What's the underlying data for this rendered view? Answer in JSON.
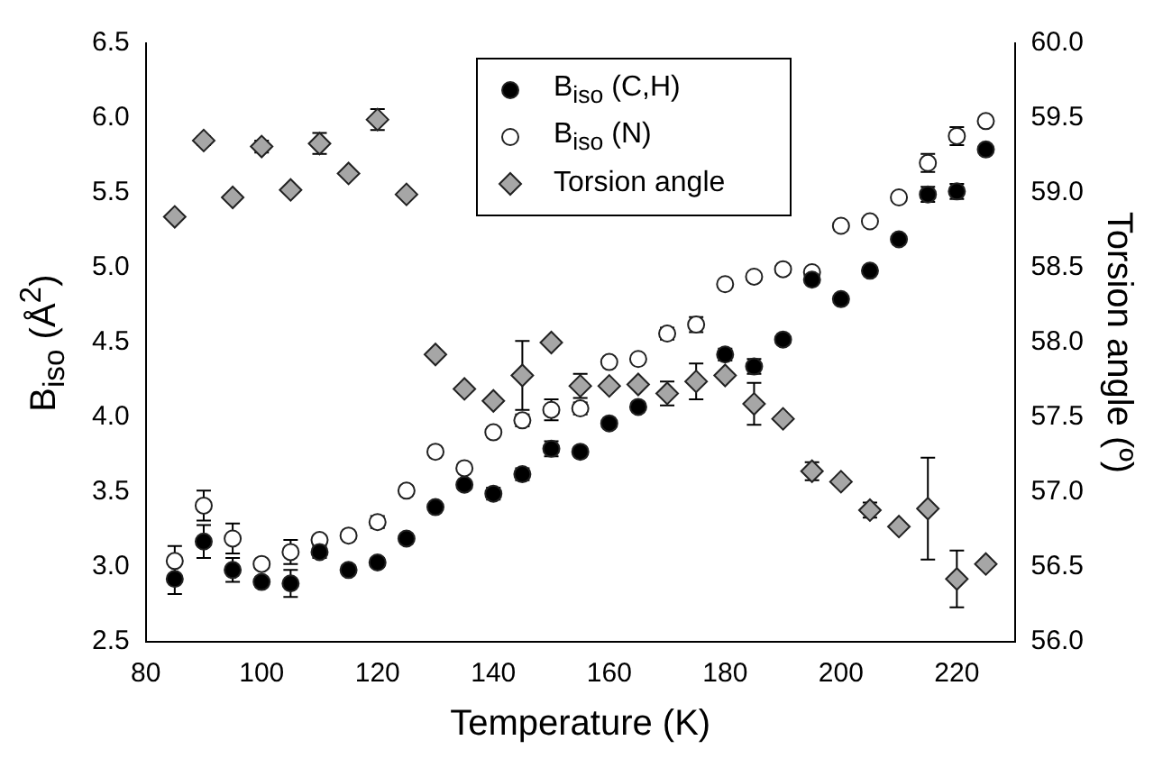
{
  "chart_data": {
    "type": "scatter",
    "xlabel": "Temperature (K)",
    "ylabel": "B$_{iso}$ (Å$^{2}$)",
    "y2label": "Torsion angle (º)",
    "x": [
      85,
      90,
      95,
      100,
      105,
      110,
      115,
      120,
      125,
      130,
      135,
      140,
      145,
      150,
      155,
      160,
      165,
      170,
      175,
      180,
      185,
      190,
      195,
      200,
      205,
      210,
      215,
      220,
      225
    ],
    "xlim": [
      80,
      230
    ],
    "xticks": [
      80,
      100,
      120,
      140,
      160,
      180,
      200,
      220
    ],
    "ylim": [
      2.5,
      6.5
    ],
    "yticks": [
      2.5,
      {
        "value": 3,
        "label": "3.0"
      },
      3.5,
      {
        "value": 4,
        "label": "4.0"
      },
      4.5,
      {
        "value": 5,
        "label": "5.0"
      },
      5.5,
      {
        "value": 6,
        "label": "6.0"
      },
      6.5
    ],
    "y2lim": [
      56,
      60
    ],
    "y2ticks": [
      {
        "value": 56,
        "label": "56.0"
      },
      56.5,
      {
        "value": 57,
        "label": "57.0"
      },
      57.5,
      {
        "value": 58,
        "label": "58.0"
      },
      58.5,
      {
        "value": 59,
        "label": "59.0"
      },
      59.5,
      {
        "value": 60,
        "label": "60.0"
      }
    ],
    "grid": false,
    "legend": "top",
    "series": [
      {
        "name": "B$_{iso}$ (C,H)",
        "color": "#000000",
        "marker": "circle",
        "values": [
          2.92,
          3.17,
          2.98,
          2.9,
          2.89,
          3.1,
          2.98,
          3.03,
          3.19,
          3.4,
          3.55,
          3.49,
          3.62,
          3.79,
          3.77,
          3.96,
          4.07,
          null,
          null,
          4.42,
          4.34,
          4.52,
          4.92,
          4.79,
          4.98,
          5.19,
          5.49,
          5.51,
          5.79
        ],
        "errors": [
          0.1,
          0.11,
          0.08,
          0.03,
          0.09,
          0.04,
          0.03,
          0.03,
          0.03,
          0.02,
          0.03,
          0.04,
          0.04,
          0.05,
          0.03,
          null,
          0.03,
          null,
          null,
          0.04,
          0.05,
          0.02,
          null,
          0.02,
          0.02,
          0.03,
          0.05,
          0.05,
          0.02
        ]
      },
      {
        "name": "B$_{iso}$ (N)",
        "color": "#ffffff",
        "marker": "circle",
        "values": [
          3.04,
          3.41,
          3.19,
          3.02,
          3.1,
          3.18,
          3.21,
          3.3,
          3.51,
          3.77,
          3.66,
          3.9,
          3.98,
          4.05,
          4.06,
          4.37,
          4.39,
          4.56,
          4.62,
          4.89,
          4.94,
          4.99,
          4.97,
          5.28,
          5.31,
          5.47,
          5.7,
          5.88,
          5.98
        ],
        "errors": [
          0.1,
          0.1,
          0.1,
          0.03,
          0.08,
          0.03,
          0.02,
          0.04,
          0.03,
          0.02,
          0.02,
          0.03,
          0.04,
          0.07,
          0.04,
          null,
          0.02,
          0.04,
          0.05,
          0.02,
          0.02,
          null,
          null,
          0.02,
          null,
          0.03,
          0.06,
          0.06,
          null
        ]
      },
      {
        "name": "Torsion angle",
        "color": "#a6a6a6",
        "marker": "diamond",
        "axis": "y2",
        "values": [
          58.84,
          59.35,
          58.97,
          59.31,
          59.02,
          59.33,
          59.13,
          59.49,
          58.99,
          57.92,
          57.69,
          57.61,
          57.78,
          58.0,
          57.71,
          57.71,
          57.72,
          57.66,
          57.74,
          57.78,
          57.59,
          57.49,
          57.14,
          57.07,
          56.88,
          56.77,
          56.89,
          56.42,
          56.52
        ],
        "errors": [
          null,
          0.03,
          null,
          0.04,
          null,
          0.07,
          null,
          0.07,
          null,
          null,
          null,
          null,
          0.23,
          null,
          0.08,
          null,
          null,
          0.08,
          0.12,
          null,
          0.14,
          null,
          0.06,
          null,
          0.05,
          null,
          0.34,
          0.19,
          null
        ]
      }
    ]
  }
}
